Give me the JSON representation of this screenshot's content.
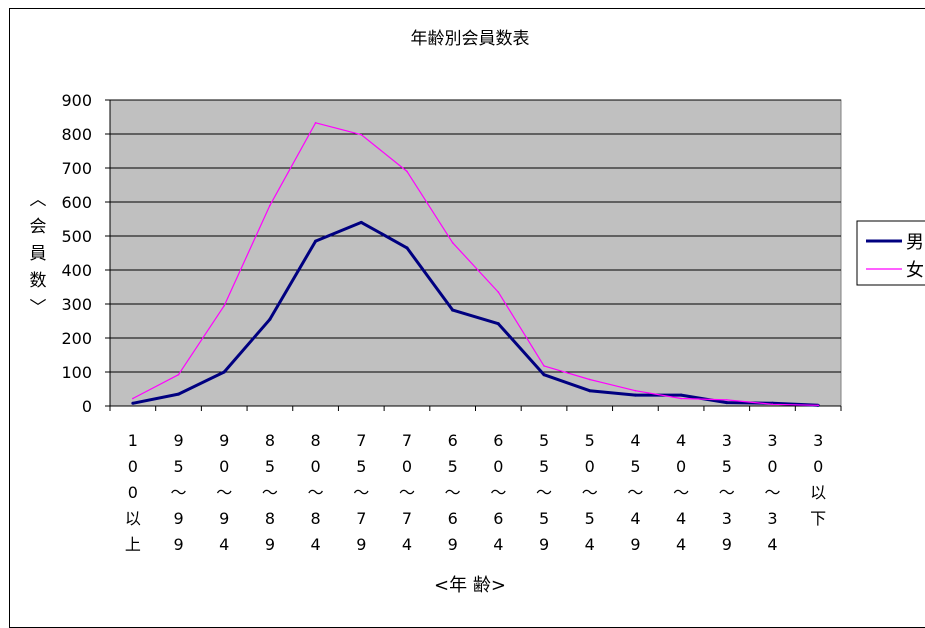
{
  "chart_data": {
    "type": "line",
    "title": "年齢別会員数表",
    "xlabel": "<年 齢>",
    "ylabel": "〈会員数〉",
    "ylabel_chars": [
      "︿",
      "会",
      "員",
      "数",
      "﹀"
    ],
    "ylim": [
      0,
      900
    ],
    "yticks": [
      "0",
      "100",
      "200",
      "300",
      "400",
      "500",
      "600",
      "700",
      "800",
      "900"
    ],
    "grid": true,
    "legend_position": "right",
    "categories": [
      [
        "1",
        "0",
        "0",
        "以",
        "上"
      ],
      [
        "9",
        "5",
        "〜",
        "9",
        "9"
      ],
      [
        "9",
        "0",
        "〜",
        "9",
        "4"
      ],
      [
        "8",
        "5",
        "〜",
        "8",
        "9"
      ],
      [
        "8",
        "0",
        "〜",
        "8",
        "4"
      ],
      [
        "7",
        "5",
        "〜",
        "7",
        "9"
      ],
      [
        "7",
        "0",
        "〜",
        "7",
        "4"
      ],
      [
        "6",
        "5",
        "〜",
        "6",
        "9"
      ],
      [
        "6",
        "0",
        "〜",
        "6",
        "4"
      ],
      [
        "5",
        "5",
        "〜",
        "5",
        "9"
      ],
      [
        "5",
        "0",
        "〜",
        "5",
        "4"
      ],
      [
        "4",
        "5",
        "〜",
        "4",
        "9"
      ],
      [
        "4",
        "0",
        "〜",
        "4",
        "4"
      ],
      [
        "3",
        "5",
        "〜",
        "3",
        "9"
      ],
      [
        "3",
        "0",
        "〜",
        "3",
        "4"
      ],
      [
        "3",
        "0",
        "以",
        "下"
      ]
    ],
    "series": [
      {
        "name": "男",
        "color": "#000080",
        "values": [
          8,
          35,
          100,
          255,
          485,
          540,
          465,
          282,
          242,
          92,
          45,
          32,
          32,
          10,
          8,
          2
        ]
      },
      {
        "name": "女",
        "color": "#ff00ff",
        "values": [
          22,
          92,
          295,
          590,
          833,
          798,
          690,
          480,
          335,
          118,
          78,
          45,
          22,
          18,
          5,
          2
        ]
      }
    ]
  }
}
